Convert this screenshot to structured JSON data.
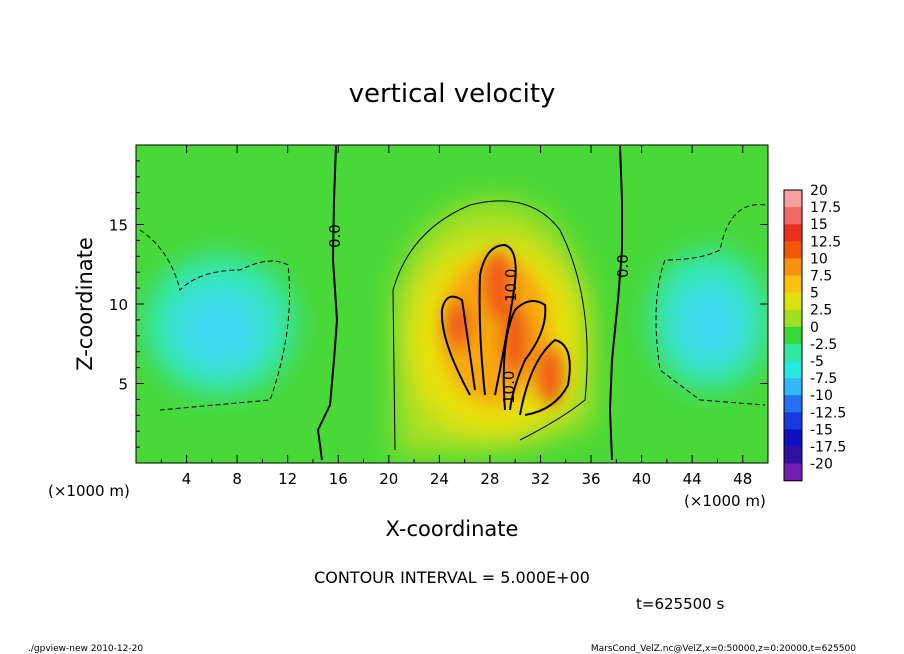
{
  "chart_data": {
    "type": "heatmap",
    "title": "vertical velocity",
    "xlabel": "X-coordinate",
    "ylabel": "Z-coordinate",
    "x_unit": "(×1000 m)",
    "y_unit": "(×1000 m)",
    "xlim": [
      0,
      50
    ],
    "ylim": [
      0,
      20
    ],
    "x_ticks": [
      4,
      8,
      12,
      16,
      20,
      24,
      28,
      32,
      36,
      40,
      44,
      48
    ],
    "y_ticks": [
      5,
      10,
      15
    ],
    "colorbar": {
      "levels": [
        "20",
        "17.5",
        "15",
        "12.5",
        "10",
        "7.5",
        "5",
        "2.5",
        "0",
        "-2.5",
        "-5",
        "-7.5",
        "-10",
        "-12.5",
        "-15",
        "-17.5",
        "-20"
      ],
      "colors": [
        "#f8a0a0",
        "#f06868",
        "#e83020",
        "#f05808",
        "#f89010",
        "#f8c010",
        "#e0e010",
        "#a0e020",
        "#38d838",
        "#30e8a0",
        "#28e8e0",
        "#30b8f8",
        "#2070f0",
        "#1838e0",
        "#1010c0",
        "#3010a0",
        "#7020b0"
      ]
    },
    "contour_labels": [
      "0.0",
      "10.0",
      "10.0",
      "0.0"
    ],
    "features": [
      {
        "type": "updraft-max",
        "x": 27.5,
        "z": 12,
        "w": 14
      },
      {
        "type": "updraft-max",
        "x": 25,
        "z": 9.5,
        "w": 12
      },
      {
        "type": "updraft-max",
        "x": 29.5,
        "z": 8.5,
        "w": 13
      },
      {
        "type": "updraft-max",
        "x": 32.5,
        "z": 6.5,
        "w": 14
      },
      {
        "type": "downdraft",
        "x": 6,
        "z": 9,
        "w": -6
      },
      {
        "type": "downdraft",
        "x": 45,
        "z": 9,
        "w": -6
      }
    ],
    "contour_interval": "CONTOUR INTERVAL = 5.000E+00",
    "time": "t=625500 s"
  },
  "footer": {
    "left": "./gpview-new   2010-12-20",
    "right": "MarsCond_VelZ.nc@VelZ,x=0:50000,z=0:20000,t=625500"
  }
}
